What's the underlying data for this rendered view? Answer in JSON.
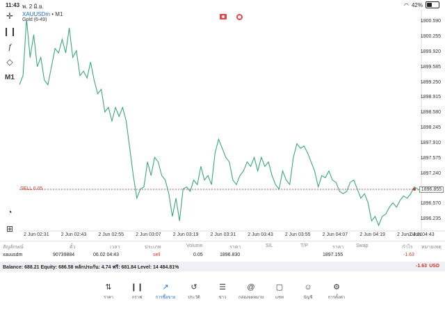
{
  "status_bar": {
    "time": "11:43",
    "date": "พ. 2 มิ.ย.",
    "battery": "42%"
  },
  "chart": {
    "symbol": "XAUUSDm",
    "timeframe": "• M1",
    "indicator_label": "Gold (6-49)",
    "y_ticks": [
      "1900.590",
      "1900.255",
      "1899.920",
      "1899.585",
      "1899.250",
      "1898.915",
      "1898.580",
      "1898.245",
      "1897.910",
      "1897.575",
      "1897.240",
      "1896.855",
      "1896.570",
      "1896.235"
    ],
    "x_ticks": [
      "2 Jun 02:31",
      "2 Jun 02:43",
      "2 Jun 02:55",
      "2 Jun 03:07",
      "2 Jun 03:19",
      "2 Jun 03:31",
      "2 Jun 03:43",
      "2 Jun 03:55",
      "2 Jun 04:07",
      "2 Jun 04:19",
      "2 Jun 04:31",
      "2 Jun 04:43"
    ],
    "trade_label": "SELL 0.05",
    "current_price": "1896.855"
  },
  "chart_data": {
    "type": "line",
    "ylim": [
      1896.07,
      1900.76
    ],
    "values": [
      1899.2,
      1899.4,
      1900.65,
      1899.8,
      1900.3,
      1899.6,
      1899.8,
      1899.3,
      1899.2,
      1899.6,
      1900.0,
      1899.9,
      1900.2,
      1899.9,
      1900.45,
      1899.8,
      1899.95,
      1899.4,
      1899.5,
      1899.35,
      1899.7,
      1899.3,
      1899.0,
      1899.1,
      1898.6,
      1898.7,
      1898.4,
      1898.7,
      1898.5,
      1898.7,
      1898.4,
      1897.8,
      1897.2,
      1896.7,
      1896.9,
      1896.95,
      1897.5,
      1897.2,
      1897.6,
      1897.5,
      1897.2,
      1897.1,
      1896.8,
      1896.3,
      1896.7,
      1896.2,
      1896.9,
      1896.95,
      1896.85,
      1897.1,
      1897.0,
      1897.4,
      1897.1,
      1897.2,
      1897.0,
      1897.7,
      1898.0,
      1897.8,
      1897.6,
      1897.5,
      1897.1,
      1897.0,
      1897.2,
      1897.3,
      1897.5,
      1897.4,
      1897.6,
      1897.3,
      1897.6,
      1897.4,
      1897.5,
      1897.2,
      1897.0,
      1896.9,
      1897.3,
      1897.1,
      1897.0,
      1897.6,
      1897.9,
      1897.8,
      1897.85,
      1897.7,
      1897.5,
      1897.3,
      1896.95,
      1897.2,
      1897.15,
      1897.3,
      1897.1,
      1897.05,
      1896.85,
      1896.8,
      1896.85,
      1897.05,
      1897.1,
      1896.9,
      1896.7,
      1896.8,
      1896.6,
      1896.2,
      1896.3,
      1896.1,
      1896.3,
      1896.35,
      1896.5,
      1896.6,
      1896.5,
      1896.65,
      1896.75,
      1896.7,
      1896.8,
      1896.95,
      1896.9,
      1896.85
    ]
  },
  "table": {
    "headers": [
      "สัญลักษณ์",
      "ตั๋ว",
      "เวลา",
      "ประเภท",
      "Volume",
      "ราคา",
      "S/L",
      "T/P",
      "ราคา",
      "Swap",
      "กำไร",
      "หมายเหตุ"
    ],
    "row": {
      "symbol": "xauusdm",
      "ticket": "90739884",
      "time": "06.02 04:43",
      "type": "sell",
      "volume": "0.05",
      "price": "1896.830",
      "current": "1897.155",
      "profit": "-1.63"
    }
  },
  "balance": {
    "text": "Balance: 688.21 Equity: 686.58 หลักประกัน: 4.74 ฟรี: 681.84 Level: 14 484.81%",
    "amount": "-1.63",
    "currency": "USD"
  },
  "tabs": [
    {
      "label": "ราคา",
      "icon": "updown-arrows-icon"
    },
    {
      "label": "กราฟ",
      "icon": "candles-icon"
    },
    {
      "label": "การซื้อขาย",
      "icon": "chart-line-icon"
    },
    {
      "label": "ประวัติ",
      "icon": "history-icon"
    },
    {
      "label": "ข่าว",
      "icon": "news-icon"
    },
    {
      "label": "กล่องจดหมาย",
      "icon": "mail-at-icon"
    },
    {
      "label": "แชท",
      "icon": "chat-icon"
    },
    {
      "label": "บัญชี",
      "icon": "account-icon"
    },
    {
      "label": "การตั้งค่า",
      "icon": "settings-icon"
    }
  ],
  "colors": {
    "line": "#3aa878",
    "accent": "#1a6cd9",
    "sell": "#c8382f"
  }
}
